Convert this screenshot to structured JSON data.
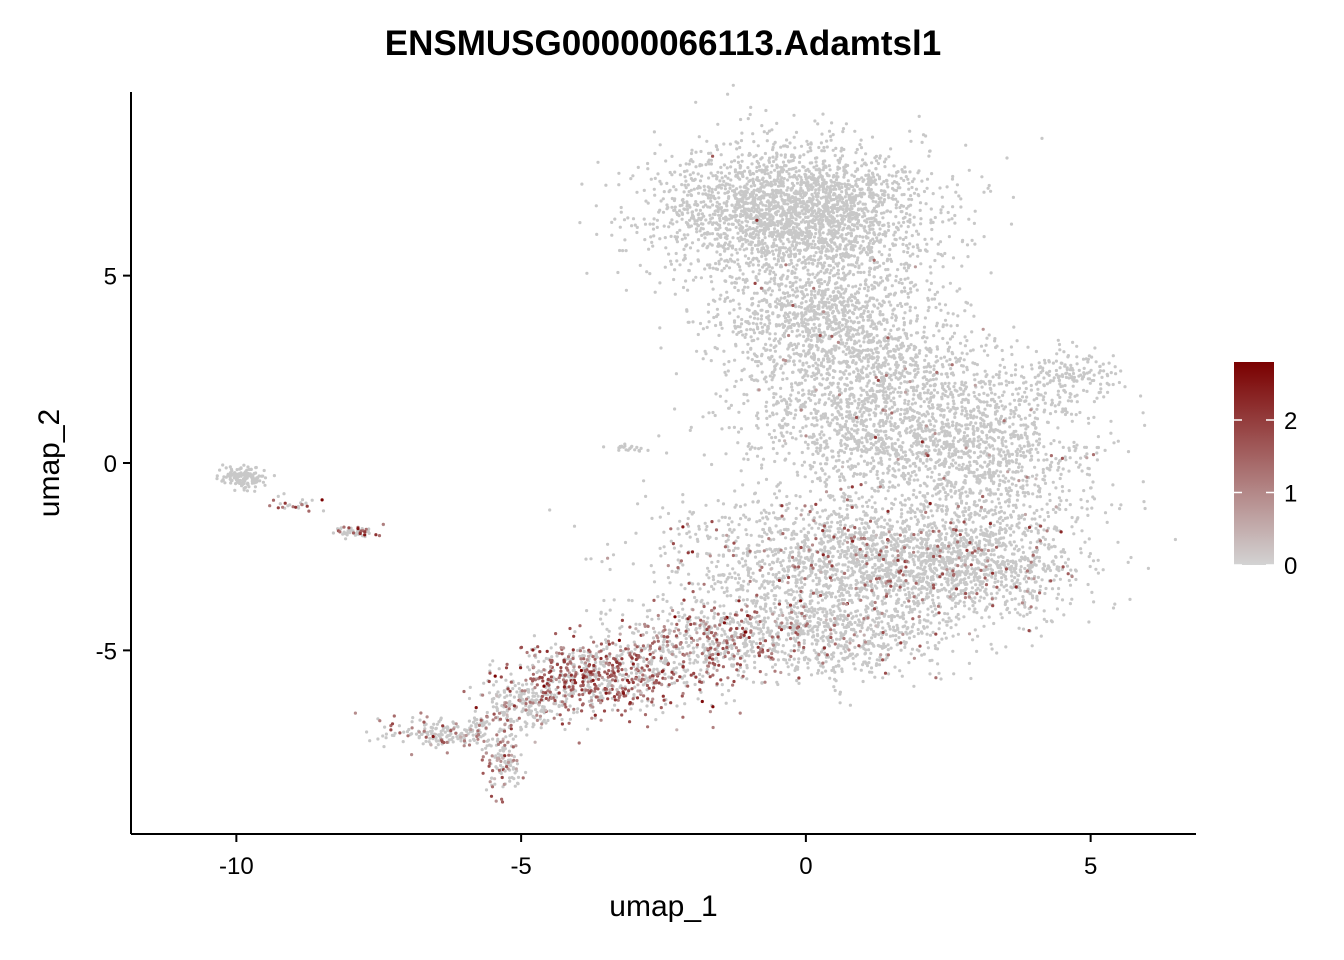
{
  "chart_data": {
    "type": "scatter",
    "title": "ENSMUSG00000066113.Adamtsl1",
    "xlabel": "umap_1",
    "ylabel": "umap_2",
    "xlim": [
      -11.85,
      6.85
    ],
    "ylim": [
      -9.9,
      9.9
    ],
    "x_ticks": [
      -10,
      -5,
      0,
      5
    ],
    "y_ticks": [
      -5,
      0,
      5
    ],
    "grid": false,
    "legend": {
      "type": "colorbar",
      "placement": "right",
      "range": [
        0,
        2.8
      ],
      "ticks": [
        0,
        1,
        2
      ],
      "low_color": "#d3d3d3",
      "high_color": "#7a0000"
    },
    "point_color_default": "#c8c8c8",
    "clusters": [
      {
        "x": -0.2,
        "y": 6.7,
        "sx": 1.2,
        "sy": 0.9,
        "n": 2600,
        "expr_frac": 0.003,
        "expr_mean": 1.5
      },
      {
        "x": 0.4,
        "y": 3.8,
        "sx": 1.0,
        "sy": 1.0,
        "n": 1300,
        "expr_frac": 0.01,
        "expr_mean": 1.2
      },
      {
        "x": 1.4,
        "y": 1.2,
        "sx": 1.2,
        "sy": 1.1,
        "n": 1500,
        "expr_frac": 0.02,
        "expr_mean": 1.3
      },
      {
        "x": 3.4,
        "y": 0.3,
        "sx": 0.9,
        "sy": 1.2,
        "n": 800,
        "expr_frac": 0.02,
        "expr_mean": 1.2
      },
      {
        "x": 4.6,
        "y": 2.3,
        "sx": 0.5,
        "sy": 0.3,
        "n": 150,
        "expr_frac": 0.0,
        "expr_mean": 0
      },
      {
        "x": 1.0,
        "y": -2.6,
        "sx": 1.6,
        "sy": 0.9,
        "n": 2000,
        "expr_frac": 0.08,
        "expr_mean": 1.4
      },
      {
        "x": 3.0,
        "y": -2.8,
        "sx": 0.9,
        "sy": 0.7,
        "n": 600,
        "expr_frac": 0.08,
        "expr_mean": 1.4
      },
      {
        "x": 0.5,
        "y": -4.6,
        "sx": 1.1,
        "sy": 0.6,
        "n": 700,
        "expr_frac": 0.1,
        "expr_mean": 1.3
      },
      {
        "x": -1.8,
        "y": -4.8,
        "sx": 0.8,
        "sy": 0.6,
        "n": 500,
        "expr_frac": 0.35,
        "expr_mean": 1.4
      },
      {
        "x": -3.6,
        "y": -5.7,
        "sx": 0.8,
        "sy": 0.5,
        "n": 700,
        "expr_frac": 0.5,
        "expr_mean": 1.6
      },
      {
        "x": -5.0,
        "y": -6.4,
        "sx": 0.4,
        "sy": 0.4,
        "n": 200,
        "expr_frac": 0.2,
        "expr_mean": 1.1
      },
      {
        "x": -6.3,
        "y": -7.2,
        "sx": 0.6,
        "sy": 0.2,
        "n": 220,
        "expr_frac": 0.25,
        "expr_mean": 1.2
      },
      {
        "x": -5.3,
        "y": -8.0,
        "sx": 0.15,
        "sy": 0.4,
        "n": 120,
        "expr_frac": 0.3,
        "expr_mean": 1.0
      },
      {
        "x": -9.9,
        "y": -0.4,
        "sx": 0.2,
        "sy": 0.15,
        "n": 140,
        "expr_frac": 0.0,
        "expr_mean": 0
      },
      {
        "x": -8.9,
        "y": -1.1,
        "sx": 0.25,
        "sy": 0.1,
        "n": 25,
        "expr_frac": 0.5,
        "expr_mean": 1.6
      },
      {
        "x": -7.9,
        "y": -1.85,
        "sx": 0.2,
        "sy": 0.1,
        "n": 50,
        "expr_frac": 0.35,
        "expr_mean": 1.5
      },
      {
        "x": -3.1,
        "y": 0.4,
        "sx": 0.2,
        "sy": 0.07,
        "n": 20,
        "expr_frac": 0.0,
        "expr_mean": 0
      }
    ]
  }
}
